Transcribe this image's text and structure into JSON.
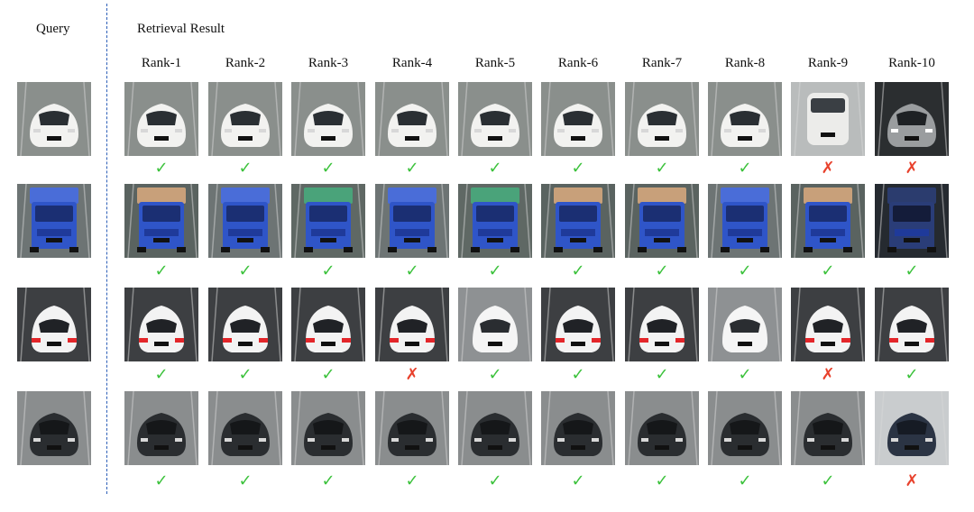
{
  "header": {
    "query_label": "Query",
    "retrieval_label": "Retrieval Result",
    "ranks": [
      "Rank-1",
      "Rank-2",
      "Rank-3",
      "Rank-4",
      "Rank-5",
      "Rank-6",
      "Rank-7",
      "Rank-8",
      "Rank-9",
      "Rank-10"
    ]
  },
  "colors": {
    "divider": "#2d5fb8",
    "correct": "#3cc23c",
    "incorrect": "#e8412c"
  },
  "rows": [
    {
      "query_vehicle": "white-hatchback",
      "results": [
        {
          "vehicle": "white-hatchback",
          "correct": true
        },
        {
          "vehicle": "white-hatchback",
          "correct": true
        },
        {
          "vehicle": "white-hatchback",
          "correct": true
        },
        {
          "vehicle": "white-hatchback",
          "correct": true
        },
        {
          "vehicle": "white-hatchback",
          "correct": true
        },
        {
          "vehicle": "white-hatchback",
          "correct": true
        },
        {
          "vehicle": "white-hatchback",
          "correct": true
        },
        {
          "vehicle": "white-hatchback",
          "correct": true
        },
        {
          "vehicle": "white-van",
          "correct": false
        },
        {
          "vehicle": "white-sedan-dark",
          "correct": false
        }
      ]
    },
    {
      "query_vehicle": "blue-truck",
      "results": [
        {
          "vehicle": "blue-truck-loaded",
          "correct": true
        },
        {
          "vehicle": "blue-truck",
          "correct": true
        },
        {
          "vehicle": "blue-truck-green-cargo",
          "correct": true
        },
        {
          "vehicle": "blue-truck",
          "correct": true
        },
        {
          "vehicle": "blue-truck-green-cargo",
          "correct": true
        },
        {
          "vehicle": "blue-truck-loaded",
          "correct": true
        },
        {
          "vehicle": "blue-truck-loaded",
          "correct": true
        },
        {
          "vehicle": "blue-truck",
          "correct": true
        },
        {
          "vehicle": "blue-truck-loaded",
          "correct": true
        },
        {
          "vehicle": "blue-truck-dark",
          "correct": true
        }
      ]
    },
    {
      "query_vehicle": "white-suv-rear",
      "results": [
        {
          "vehicle": "white-suv-rear",
          "correct": true
        },
        {
          "vehicle": "white-suv-rear",
          "correct": true
        },
        {
          "vehicle": "white-suv-rear",
          "correct": true
        },
        {
          "vehicle": "white-suv-rear",
          "correct": false
        },
        {
          "vehicle": "white-suv-front",
          "correct": true
        },
        {
          "vehicle": "white-suv-rear",
          "correct": true
        },
        {
          "vehicle": "white-suv-rear",
          "correct": true
        },
        {
          "vehicle": "white-suv-front",
          "correct": true
        },
        {
          "vehicle": "white-suv-rear",
          "correct": false
        },
        {
          "vehicle": "white-suv-rear",
          "correct": true
        }
      ]
    },
    {
      "query_vehicle": "black-sedan",
      "results": [
        {
          "vehicle": "black-sedan",
          "correct": true
        },
        {
          "vehicle": "black-sedan",
          "correct": true
        },
        {
          "vehicle": "black-sedan",
          "correct": true
        },
        {
          "vehicle": "black-sedan",
          "correct": true
        },
        {
          "vehicle": "black-sedan",
          "correct": true
        },
        {
          "vehicle": "black-sedan",
          "correct": true
        },
        {
          "vehicle": "black-sedan",
          "correct": true
        },
        {
          "vehicle": "black-sedan",
          "correct": true
        },
        {
          "vehicle": "black-sedan",
          "correct": true
        },
        {
          "vehicle": "dark-blue-sedan",
          "correct": false
        }
      ]
    }
  ],
  "marks": {
    "correct": "✓",
    "incorrect": "✗"
  }
}
